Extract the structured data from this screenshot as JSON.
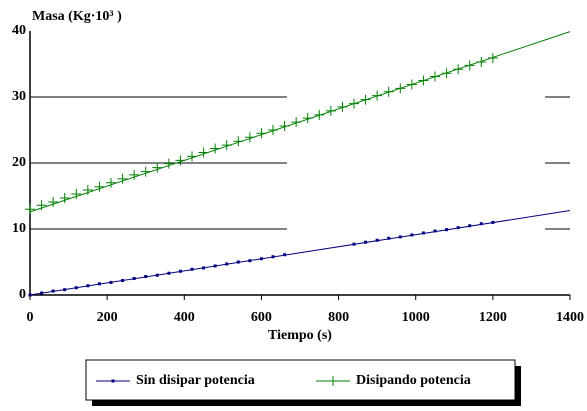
{
  "chart_data": {
    "type": "scatter",
    "title": "Masa (Kg·10³ )",
    "x_label": "Tiempo (s)",
    "xlim": [
      0,
      1400
    ],
    "xticks": [
      0,
      200,
      400,
      600,
      800,
      1000,
      1200,
      1400
    ],
    "ylim": [
      0,
      40
    ],
    "yticks": [
      0,
      10,
      20,
      30,
      40
    ],
    "grid": true,
    "legend": "bottom",
    "series": [
      {
        "name": "Sin disipar potencia",
        "color": "#000080",
        "marker": "square",
        "x": [
          0,
          30,
          60,
          90,
          120,
          150,
          180,
          210,
          240,
          270,
          300,
          330,
          360,
          390,
          420,
          450,
          480,
          510,
          540,
          570,
          600,
          630,
          660,
          840,
          870,
          900,
          930,
          960,
          990,
          1020,
          1050,
          1080,
          1110,
          1140,
          1170,
          1200
        ],
        "values": [
          0,
          0.3,
          0.6,
          0.8,
          1.1,
          1.4,
          1.7,
          1.9,
          2.2,
          2.5,
          2.8,
          3.0,
          3.3,
          3.6,
          3.9,
          4.1,
          4.4,
          4.7,
          5.0,
          5.2,
          5.5,
          5.8,
          6.1,
          7.7,
          8.0,
          8.3,
          8.6,
          8.8,
          9.1,
          9.4,
          9.7,
          9.9,
          10.2,
          10.5,
          10.8,
          11.0
        ],
        "trend": {
          "x": [
            0,
            1400
          ],
          "values": [
            0,
            12.8
          ]
        }
      },
      {
        "name": "Disipando potencia",
        "color": "#008000",
        "marker": "plus",
        "x": [
          0,
          30,
          60,
          90,
          120,
          150,
          180,
          210,
          240,
          270,
          300,
          330,
          360,
          390,
          420,
          450,
          480,
          510,
          540,
          570,
          600,
          630,
          660,
          690,
          720,
          750,
          780,
          810,
          840,
          870,
          900,
          930,
          960,
          990,
          1020,
          1050,
          1080,
          1110,
          1140,
          1170,
          1200
        ],
        "values": [
          13.0,
          13.6,
          14.1,
          14.7,
          15.3,
          15.9,
          16.4,
          17.0,
          17.6,
          18.2,
          18.7,
          19.3,
          19.9,
          20.4,
          21.0,
          21.6,
          22.2,
          22.7,
          23.3,
          23.9,
          24.5,
          25.0,
          25.6,
          26.2,
          26.8,
          27.3,
          27.9,
          28.5,
          29.0,
          29.6,
          30.2,
          30.8,
          31.3,
          31.9,
          32.5,
          33.1,
          33.6,
          34.2,
          34.8,
          35.3,
          35.9
        ],
        "trend": {
          "x": [
            0,
            1400
          ],
          "values": [
            12.6,
            39.9
          ]
        }
      }
    ]
  }
}
